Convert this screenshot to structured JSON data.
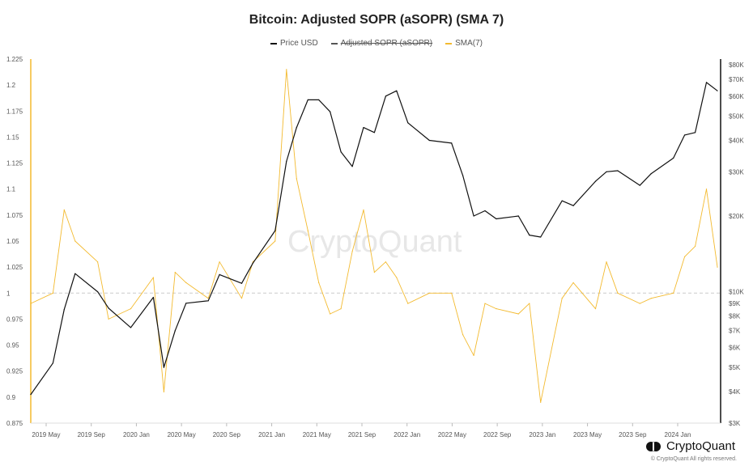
{
  "chart_data": {
    "type": "line",
    "title": "Bitcoin: Adjusted SOPR (aSOPR) (SMA 7)",
    "legend": [
      {
        "name": "Price USD",
        "color": "#111111",
        "struck": false
      },
      {
        "name": "Adjusted SOPR (aSOPR)",
        "color": "#555555",
        "struck": true
      },
      {
        "name": "SMA(7)",
        "color": "#f3ba2f",
        "struck": false
      }
    ],
    "x_ticks": [
      "2019 May",
      "2019 Sep",
      "2020 Jan",
      "2020 May",
      "2020 Sep",
      "2021 Jan",
      "2021 May",
      "2021 Sep",
      "2022 Jan",
      "2022 May",
      "2022 Sep",
      "2023 Jan",
      "2023 May",
      "2023 Sep",
      "2024 Jan"
    ],
    "left_axis": {
      "ylim": [
        0.875,
        1.225
      ],
      "ticks": [
        "0.875",
        "0.9",
        "0.925",
        "0.95",
        "0.975",
        "1",
        "1.025",
        "1.05",
        "1.075",
        "1.1",
        "1.125",
        "1.15",
        "1.175",
        "1.2",
        "1.225"
      ],
      "reference": 1
    },
    "right_axis": {
      "scale": "log",
      "ticks": [
        "$3K",
        "$4K",
        "$5K",
        "$6K",
        "$7K",
        "$8K",
        "$9K",
        "$10K",
        "$20K",
        "$30K",
        "$40K",
        "$50K",
        "$60K",
        "$70K",
        "$80K"
      ]
    },
    "x_dates": [
      "2019-03",
      "2019-05",
      "2019-06",
      "2019-07",
      "2019-09",
      "2019-10",
      "2019-12",
      "2020-02",
      "2020-03",
      "2020-04",
      "2020-05",
      "2020-07",
      "2020-08",
      "2020-10",
      "2020-11",
      "2021-01",
      "2021-02",
      "2021-03",
      "2021-04",
      "2021-05",
      "2021-06",
      "2021-07",
      "2021-08",
      "2021-09",
      "2021-10",
      "2021-11",
      "2021-12",
      "2022-01",
      "2022-03",
      "2022-05",
      "2022-06",
      "2022-07",
      "2022-08",
      "2022-09",
      "2022-11",
      "2022-12",
      "2023-01",
      "2023-03",
      "2023-04",
      "2023-06",
      "2023-07",
      "2023-08",
      "2023-10",
      "2023-11",
      "2024-01",
      "2024-02",
      "2024-03",
      "2024-04",
      "2024-05"
    ],
    "series": [
      {
        "name": "Price USD",
        "axis": "right",
        "color": "#111111",
        "values": [
          3900,
          5200,
          8500,
          11800,
          10000,
          8600,
          7200,
          9500,
          5000,
          7000,
          9000,
          9200,
          11700,
          10800,
          13000,
          17500,
          33000,
          45000,
          58000,
          58000,
          52000,
          36000,
          31500,
          45000,
          43000,
          60000,
          63000,
          47000,
          40000,
          39000,
          29000,
          20000,
          21000,
          19500,
          20000,
          16800,
          16500,
          23000,
          22000,
          27500,
          30000,
          30300,
          26500,
          29500,
          34000,
          42000,
          43000,
          68000,
          63000
        ]
      },
      {
        "name": "SMA(7)",
        "axis": "left",
        "color": "#f3ba2f",
        "values": [
          0.99,
          1.0,
          1.08,
          1.05,
          1.03,
          0.975,
          0.985,
          1.015,
          0.905,
          1.02,
          1.01,
          0.995,
          1.03,
          0.995,
          1.03,
          1.05,
          1.215,
          1.11,
          1.06,
          1.01,
          0.98,
          0.985,
          1.04,
          1.08,
          1.02,
          1.03,
          1.015,
          0.99,
          1.0,
          1.0,
          0.96,
          0.94,
          0.99,
          0.985,
          0.98,
          0.99,
          0.895,
          0.995,
          1.01,
          0.985,
          1.03,
          1.0,
          0.99,
          0.995,
          1.0,
          1.035,
          1.045,
          1.1,
          1.025
        ]
      }
    ]
  },
  "branding": {
    "name": "CryptoQuant",
    "copyright": "© CryptoQuant All rights reserved.",
    "watermark": "CryptoQuant"
  }
}
